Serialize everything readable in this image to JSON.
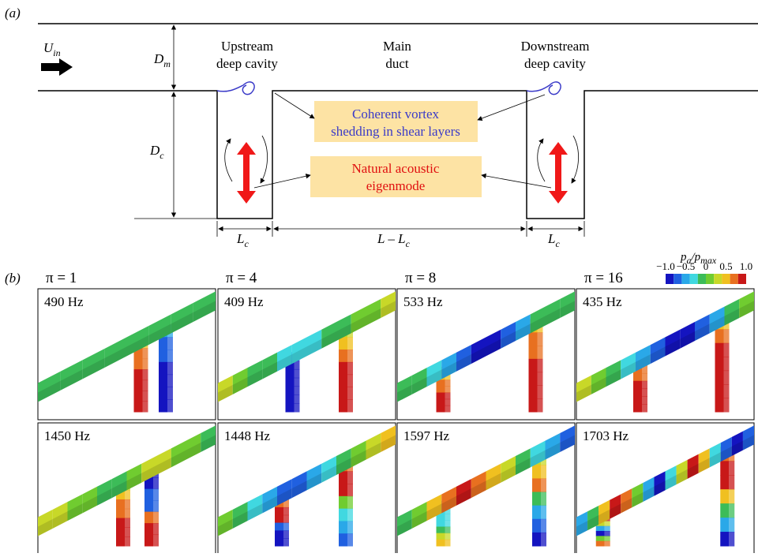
{
  "panel_a": {
    "label": "(a)",
    "u_in": {
      "main": "U",
      "sub": "in"
    },
    "d_m": {
      "main": "D",
      "sub": "m"
    },
    "d_c": {
      "main": "D",
      "sub": "c"
    },
    "upstream": [
      "Upstream",
      "deep cavity"
    ],
    "main_duct": [
      "Main",
      "duct"
    ],
    "downstream": [
      "Downstream",
      "deep cavity"
    ],
    "vortex_box": [
      "Coherent vortex",
      "shedding in shear layers"
    ],
    "acoustic_box": [
      "Natural acoustic",
      "eigenmode"
    ],
    "l_c_left": {
      "main": "L",
      "sub": "c"
    },
    "l_minus": {
      "main": "L – L",
      "sub": "c"
    },
    "l_c_right": {
      "main": "L",
      "sub": "c"
    }
  },
  "panel_b": {
    "label": "(b)",
    "columns": [
      "π = 1",
      "π = 4",
      "π = 8",
      "π = 16"
    ],
    "colorbar": {
      "title": {
        "p": "p",
        "a": "a",
        "slash": "/",
        "p2": "p",
        "max": "max"
      },
      "ticks": [
        {
          "value": -1.0,
          "label": "−1.0"
        },
        {
          "value": -0.5,
          "label": "−0.5"
        },
        0,
        {
          "value": 0.5,
          "label": "0.5"
        },
        {
          "value": 1.0,
          "label": "1.0"
        }
      ]
    },
    "frequencies": [
      [
        "490 Hz",
        "409 Hz",
        "533 Hz",
        "435 Hz"
      ],
      [
        "1450 Hz",
        "1448 Hz",
        "1597 Hz",
        "1703 Hz"
      ]
    ]
  }
}
